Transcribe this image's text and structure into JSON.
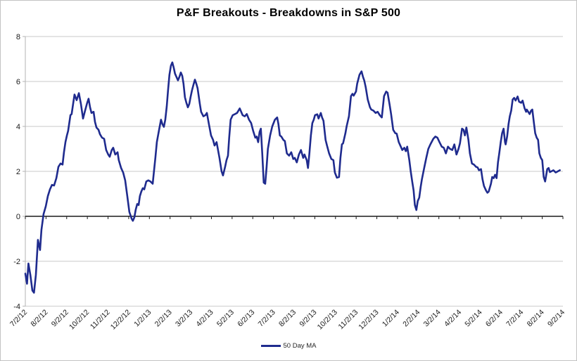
{
  "title": "P&F Breakouts - Breakdowns in S&P 500",
  "legend": {
    "label": "50 Day MA"
  },
  "colors": {
    "series_line": "#1f2b8e",
    "gridline": "#c9c9c9",
    "value_axis_line": "#b3b3b3",
    "zero_axis_line": "#1a1a1a",
    "tick_label": "#1a1a1a",
    "background": "#ffffff",
    "border": "#c3c3c3"
  },
  "chart_data": {
    "type": "line",
    "title": "P&F Breakouts - Breakdowns in S&P 500",
    "xlabel": "",
    "ylabel": "",
    "grid": "horizontal",
    "legend_position": "bottom-center",
    "ylim": [
      -4,
      8
    ],
    "y_ticks": [
      8,
      6,
      4,
      2,
      0,
      -2,
      -4
    ],
    "x_tick_labels": [
      "7/2/12",
      "8/2/12",
      "9/2/12",
      "10/2/12",
      "11/2/12",
      "12/2/12",
      "1/2/13",
      "2/2/13",
      "3/2/13",
      "4/2/13",
      "5/2/13",
      "6/2/13",
      "7/2/13",
      "8/2/13",
      "9/2/13",
      "10/2/13",
      "11/2/13",
      "12/2/13",
      "1/2/14",
      "2/2/14",
      "3/2/14",
      "4/2/14",
      "5/2/14",
      "6/2/14",
      "7/2/14",
      "8/2/14",
      "9/2/14"
    ],
    "series": [
      {
        "name": "50 Day MA",
        "color": "#1f2b8e",
        "points": [
          [
            0.0,
            -2.55
          ],
          [
            0.08,
            -3.0
          ],
          [
            0.15,
            -2.1
          ],
          [
            0.24,
            -2.6
          ],
          [
            0.34,
            -3.3
          ],
          [
            0.42,
            -3.4
          ],
          [
            0.51,
            -2.6
          ],
          [
            0.61,
            -1.05
          ],
          [
            0.71,
            -1.5
          ],
          [
            0.78,
            -0.6
          ],
          [
            0.88,
            0.1
          ],
          [
            0.99,
            0.45
          ],
          [
            1.09,
            0.9
          ],
          [
            1.19,
            1.2
          ],
          [
            1.29,
            1.4
          ],
          [
            1.39,
            1.37
          ],
          [
            1.5,
            1.7
          ],
          [
            1.6,
            2.2
          ],
          [
            1.7,
            2.35
          ],
          [
            1.8,
            2.3
          ],
          [
            1.87,
            2.85
          ],
          [
            1.94,
            3.3
          ],
          [
            2.01,
            3.6
          ],
          [
            2.07,
            3.8
          ],
          [
            2.18,
            4.5
          ],
          [
            2.24,
            4.55
          ],
          [
            2.31,
            5.0
          ],
          [
            2.38,
            5.42
          ],
          [
            2.48,
            5.17
          ],
          [
            2.59,
            5.48
          ],
          [
            2.69,
            5.0
          ],
          [
            2.79,
            4.35
          ],
          [
            2.89,
            4.7
          ],
          [
            2.99,
            5.05
          ],
          [
            3.06,
            5.23
          ],
          [
            3.13,
            4.85
          ],
          [
            3.2,
            4.6
          ],
          [
            3.3,
            4.65
          ],
          [
            3.37,
            4.2
          ],
          [
            3.44,
            3.95
          ],
          [
            3.54,
            3.85
          ],
          [
            3.61,
            3.65
          ],
          [
            3.71,
            3.5
          ],
          [
            3.81,
            3.45
          ],
          [
            3.91,
            2.95
          ],
          [
            4.01,
            2.75
          ],
          [
            4.08,
            2.65
          ],
          [
            4.18,
            2.95
          ],
          [
            4.25,
            3.05
          ],
          [
            4.35,
            2.75
          ],
          [
            4.46,
            2.85
          ],
          [
            4.52,
            2.5
          ],
          [
            4.63,
            2.15
          ],
          [
            4.73,
            1.95
          ],
          [
            4.83,
            1.6
          ],
          [
            4.93,
            0.9
          ],
          [
            5.03,
            0.2
          ],
          [
            5.14,
            -0.1
          ],
          [
            5.2,
            -0.2
          ],
          [
            5.27,
            -0.05
          ],
          [
            5.34,
            0.3
          ],
          [
            5.41,
            0.55
          ],
          [
            5.48,
            0.5
          ],
          [
            5.54,
            0.9
          ],
          [
            5.61,
            1.1
          ],
          [
            5.68,
            1.25
          ],
          [
            5.75,
            1.2
          ],
          [
            5.85,
            1.55
          ],
          [
            5.95,
            1.6
          ],
          [
            6.05,
            1.55
          ],
          [
            6.16,
            1.45
          ],
          [
            6.22,
            2.0
          ],
          [
            6.29,
            2.6
          ],
          [
            6.36,
            3.3
          ],
          [
            6.46,
            3.8
          ],
          [
            6.56,
            4.3
          ],
          [
            6.63,
            4.1
          ],
          [
            6.7,
            3.98
          ],
          [
            6.77,
            4.3
          ],
          [
            6.84,
            4.9
          ],
          [
            6.9,
            5.6
          ],
          [
            6.97,
            6.3
          ],
          [
            7.04,
            6.7
          ],
          [
            7.11,
            6.85
          ],
          [
            7.18,
            6.6
          ],
          [
            7.24,
            6.35
          ],
          [
            7.31,
            6.2
          ],
          [
            7.38,
            6.05
          ],
          [
            7.45,
            6.2
          ],
          [
            7.52,
            6.4
          ],
          [
            7.59,
            6.25
          ],
          [
            7.65,
            5.9
          ],
          [
            7.72,
            5.3
          ],
          [
            7.79,
            5.05
          ],
          [
            7.86,
            4.85
          ],
          [
            7.93,
            5.0
          ],
          [
            7.99,
            5.3
          ],
          [
            8.06,
            5.6
          ],
          [
            8.13,
            5.85
          ],
          [
            8.2,
            6.08
          ],
          [
            8.27,
            5.9
          ],
          [
            8.33,
            5.7
          ],
          [
            8.44,
            5.0
          ],
          [
            8.5,
            4.65
          ],
          [
            8.61,
            4.45
          ],
          [
            8.71,
            4.5
          ],
          [
            8.78,
            4.6
          ],
          [
            8.88,
            4.1
          ],
          [
            8.98,
            3.6
          ],
          [
            9.08,
            3.4
          ],
          [
            9.15,
            3.15
          ],
          [
            9.25,
            3.3
          ],
          [
            9.39,
            2.6
          ],
          [
            9.49,
            2.0
          ],
          [
            9.56,
            1.82
          ],
          [
            9.66,
            2.2
          ],
          [
            9.73,
            2.5
          ],
          [
            9.8,
            2.7
          ],
          [
            9.86,
            3.5
          ],
          [
            9.93,
            4.3
          ],
          [
            10.03,
            4.5
          ],
          [
            10.14,
            4.55
          ],
          [
            10.24,
            4.6
          ],
          [
            10.37,
            4.8
          ],
          [
            10.51,
            4.5
          ],
          [
            10.61,
            4.45
          ],
          [
            10.71,
            4.55
          ],
          [
            10.82,
            4.3
          ],
          [
            10.92,
            4.15
          ],
          [
            11.02,
            3.8
          ],
          [
            11.12,
            3.5
          ],
          [
            11.19,
            3.55
          ],
          [
            11.26,
            3.3
          ],
          [
            11.33,
            3.75
          ],
          [
            11.39,
            3.9
          ],
          [
            11.46,
            2.8
          ],
          [
            11.53,
            1.5
          ],
          [
            11.6,
            1.45
          ],
          [
            11.67,
            2.2
          ],
          [
            11.73,
            3.0
          ],
          [
            11.84,
            3.6
          ],
          [
            11.94,
            4.0
          ],
          [
            12.07,
            4.3
          ],
          [
            12.18,
            4.4
          ],
          [
            12.24,
            4.1
          ],
          [
            12.31,
            3.6
          ],
          [
            12.38,
            3.55
          ],
          [
            12.48,
            3.4
          ],
          [
            12.55,
            3.35
          ],
          [
            12.65,
            2.8
          ],
          [
            12.76,
            2.7
          ],
          [
            12.86,
            2.85
          ],
          [
            12.96,
            2.55
          ],
          [
            13.03,
            2.6
          ],
          [
            13.13,
            2.4
          ],
          [
            13.23,
            2.75
          ],
          [
            13.33,
            2.95
          ],
          [
            13.44,
            2.6
          ],
          [
            13.5,
            2.75
          ],
          [
            13.61,
            2.5
          ],
          [
            13.67,
            2.15
          ],
          [
            13.74,
            2.8
          ],
          [
            13.81,
            3.6
          ],
          [
            13.88,
            4.15
          ],
          [
            13.95,
            4.3
          ],
          [
            14.01,
            4.5
          ],
          [
            14.12,
            4.54
          ],
          [
            14.18,
            4.35
          ],
          [
            14.29,
            4.6
          ],
          [
            14.35,
            4.4
          ],
          [
            14.42,
            4.25
          ],
          [
            14.52,
            3.4
          ],
          [
            14.59,
            3.15
          ],
          [
            14.69,
            2.8
          ],
          [
            14.8,
            2.55
          ],
          [
            14.9,
            2.5
          ],
          [
            14.97,
            1.95
          ],
          [
            15.07,
            1.72
          ],
          [
            15.17,
            1.75
          ],
          [
            15.24,
            2.6
          ],
          [
            15.31,
            3.2
          ],
          [
            15.37,
            3.25
          ],
          [
            15.48,
            3.7
          ],
          [
            15.54,
            4.0
          ],
          [
            15.65,
            4.45
          ],
          [
            15.75,
            5.35
          ],
          [
            15.82,
            5.45
          ],
          [
            15.88,
            5.37
          ],
          [
            15.99,
            5.55
          ],
          [
            16.05,
            5.9
          ],
          [
            16.16,
            6.3
          ],
          [
            16.26,
            6.45
          ],
          [
            16.33,
            6.2
          ],
          [
            16.39,
            6.05
          ],
          [
            16.46,
            5.75
          ],
          [
            16.56,
            5.2
          ],
          [
            16.67,
            4.85
          ],
          [
            16.73,
            4.75
          ],
          [
            16.84,
            4.7
          ],
          [
            16.94,
            4.6
          ],
          [
            17.04,
            4.65
          ],
          [
            17.14,
            4.5
          ],
          [
            17.24,
            4.4
          ],
          [
            17.35,
            5.35
          ],
          [
            17.45,
            5.55
          ],
          [
            17.52,
            5.5
          ],
          [
            17.62,
            4.95
          ],
          [
            17.69,
            4.55
          ],
          [
            17.79,
            3.85
          ],
          [
            17.89,
            3.7
          ],
          [
            17.96,
            3.68
          ],
          [
            18.06,
            3.3
          ],
          [
            18.16,
            3.1
          ],
          [
            18.23,
            2.95
          ],
          [
            18.33,
            3.05
          ],
          [
            18.4,
            2.9
          ],
          [
            18.47,
            3.1
          ],
          [
            18.57,
            2.5
          ],
          [
            18.64,
            2.0
          ],
          [
            18.71,
            1.55
          ],
          [
            18.78,
            1.15
          ],
          [
            18.84,
            0.5
          ],
          [
            18.91,
            0.28
          ],
          [
            18.98,
            0.68
          ],
          [
            19.05,
            0.83
          ],
          [
            19.12,
            1.3
          ],
          [
            19.18,
            1.65
          ],
          [
            19.29,
            2.15
          ],
          [
            19.39,
            2.6
          ],
          [
            19.49,
            3.0
          ],
          [
            19.59,
            3.2
          ],
          [
            19.73,
            3.45
          ],
          [
            19.83,
            3.55
          ],
          [
            19.93,
            3.5
          ],
          [
            20.03,
            3.3
          ],
          [
            20.14,
            3.1
          ],
          [
            20.24,
            3.05
          ],
          [
            20.34,
            2.8
          ],
          [
            20.44,
            3.1
          ],
          [
            20.54,
            3.0
          ],
          [
            20.65,
            2.95
          ],
          [
            20.75,
            3.2
          ],
          [
            20.85,
            2.75
          ],
          [
            20.95,
            3.0
          ],
          [
            21.02,
            3.25
          ],
          [
            21.12,
            3.9
          ],
          [
            21.19,
            3.85
          ],
          [
            21.26,
            3.6
          ],
          [
            21.33,
            3.95
          ],
          [
            21.43,
            3.4
          ],
          [
            21.5,
            2.8
          ],
          [
            21.6,
            2.35
          ],
          [
            21.7,
            2.3
          ],
          [
            21.8,
            2.2
          ],
          [
            21.87,
            2.18
          ],
          [
            21.94,
            2.05
          ],
          [
            22.04,
            2.1
          ],
          [
            22.11,
            1.65
          ],
          [
            22.18,
            1.35
          ],
          [
            22.28,
            1.15
          ],
          [
            22.35,
            1.05
          ],
          [
            22.41,
            1.1
          ],
          [
            22.52,
            1.45
          ],
          [
            22.58,
            1.75
          ],
          [
            22.65,
            1.7
          ],
          [
            22.72,
            1.85
          ],
          [
            22.79,
            1.7
          ],
          [
            22.86,
            2.4
          ],
          [
            22.92,
            2.8
          ],
          [
            22.99,
            3.3
          ],
          [
            23.06,
            3.7
          ],
          [
            23.13,
            3.9
          ],
          [
            23.2,
            3.3
          ],
          [
            23.23,
            3.2
          ],
          [
            23.3,
            3.55
          ],
          [
            23.37,
            4.1
          ],
          [
            23.43,
            4.45
          ],
          [
            23.5,
            4.7
          ],
          [
            23.57,
            5.2
          ],
          [
            23.64,
            5.27
          ],
          [
            23.71,
            5.15
          ],
          [
            23.81,
            5.33
          ],
          [
            23.88,
            5.1
          ],
          [
            23.98,
            5.05
          ],
          [
            24.05,
            5.15
          ],
          [
            24.15,
            4.8
          ],
          [
            24.22,
            4.65
          ],
          [
            24.25,
            4.75
          ],
          [
            24.39,
            4.55
          ],
          [
            24.46,
            4.7
          ],
          [
            24.52,
            4.75
          ],
          [
            24.59,
            4.2
          ],
          [
            24.66,
            3.7
          ],
          [
            24.73,
            3.5
          ],
          [
            24.8,
            3.4
          ],
          [
            24.86,
            2.8
          ],
          [
            24.93,
            2.6
          ],
          [
            25.0,
            2.5
          ],
          [
            25.07,
            1.75
          ],
          [
            25.14,
            1.55
          ],
          [
            25.24,
            2.1
          ],
          [
            25.31,
            2.15
          ],
          [
            25.37,
            1.97
          ],
          [
            25.44,
            2.0
          ],
          [
            25.54,
            2.05
          ],
          [
            25.65,
            1.95
          ],
          [
            25.75,
            2.0
          ],
          [
            25.85,
            2.05
          ]
        ]
      }
    ]
  }
}
